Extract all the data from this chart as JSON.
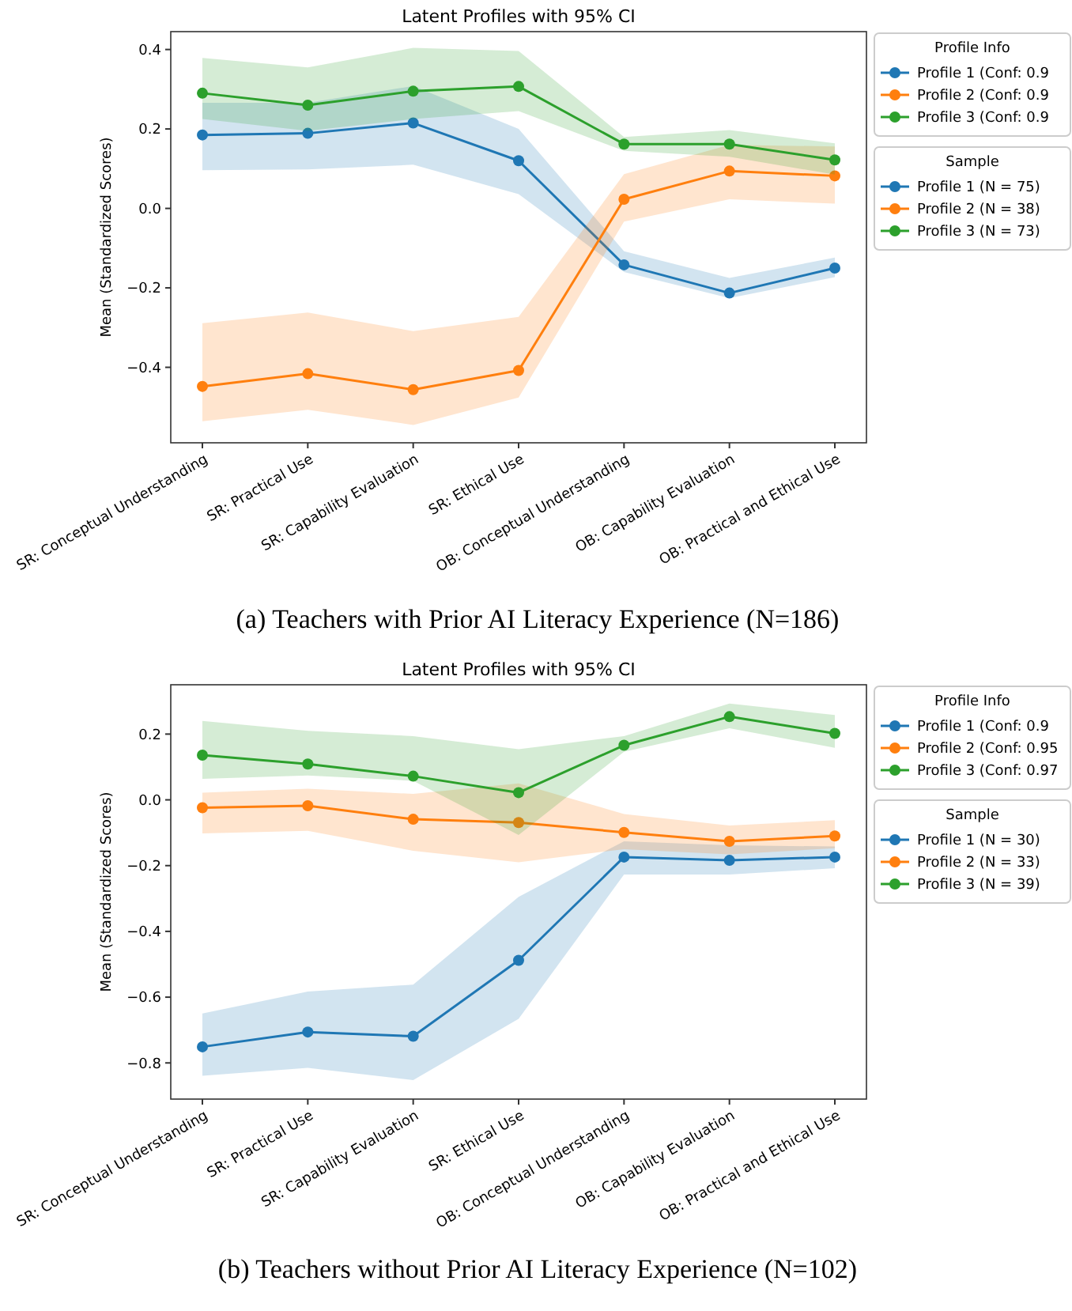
{
  "chart_data": [
    {
      "type": "line",
      "title": "Latent Profiles with 95% CI",
      "ylabel": "Mean (Standardized Scores)",
      "categories": [
        "SR: Conceptual Understanding",
        "SR: Practical Use",
        "SR: Capability Evaluation",
        "SR: Ethical Use",
        "OB: Conceptual Understanding",
        "OB: Capability Evaluation",
        "OB: Practical and Ethical Use"
      ],
      "series": [
        {
          "name": "Profile 1 (Conf: 0.9",
          "color": "#1f77b4",
          "values": [
            0.185,
            0.189,
            0.215,
            0.12,
            -0.142,
            -0.213,
            -0.15
          ],
          "upper": [
            0.266,
            0.266,
            0.308,
            0.2,
            -0.108,
            -0.175,
            -0.124
          ],
          "lower": [
            0.096,
            0.098,
            0.11,
            0.036,
            -0.16,
            -0.226,
            -0.173
          ]
        },
        {
          "name": "Profile 2 (Conf: 0.9",
          "color": "#ff7f0e",
          "values": [
            -0.448,
            -0.416,
            -0.456,
            -0.408,
            0.023,
            0.094,
            0.082
          ],
          "upper": [
            -0.289,
            -0.262,
            -0.309,
            -0.273,
            0.086,
            0.16,
            0.156
          ],
          "lower": [
            -0.536,
            -0.507,
            -0.545,
            -0.476,
            -0.033,
            0.023,
            0.012
          ]
        },
        {
          "name": "Profile 3 (Conf: 0.9",
          "color": "#2ca02c",
          "values": [
            0.29,
            0.26,
            0.295,
            0.307,
            0.162,
            0.162,
            0.122
          ],
          "upper": [
            0.379,
            0.355,
            0.404,
            0.396,
            0.18,
            0.197,
            0.164
          ],
          "lower": [
            0.225,
            0.195,
            0.225,
            0.245,
            0.145,
            0.13,
            0.085
          ]
        }
      ],
      "legend_title": "Profile Info",
      "legend": "right",
      "marker": "circle",
      "grid": false,
      "ylim": [
        -0.59,
        0.445
      ],
      "yticks": [
        {
          "value": -0.4,
          "label": "−0.4"
        },
        {
          "value": -0.2,
          "label": "−0.2"
        },
        {
          "value": 0,
          "label": "0.0"
        },
        {
          "value": 0.2,
          "label": "0.2"
        },
        {
          "value": 0.4,
          "label": "0.4"
        }
      ],
      "annotations": [
        "Sample",
        "Profile 1 (N = 75)",
        "Profile 2 (N = 38)",
        "Profile 3 (N = 73)",
        "(a) Teachers with Prior AI Literacy Experience (N=186)"
      ]
    },
    {
      "type": "line",
      "title": "Latent Profiles with 95% CI",
      "ylabel": "Mean (Standardized Scores)",
      "categories": [
        "SR: Conceptual Understanding",
        "SR: Practical Use",
        "SR: Capability Evaluation",
        "SR: Ethical Use",
        "OB: Conceptual Understanding",
        "OB: Capability Evaluation",
        "OB: Practical and Ethical Use"
      ],
      "series": [
        {
          "name": "Profile 1 (Conf: 0.9",
          "color": "#1f77b4",
          "values": [
            -0.751,
            -0.706,
            -0.719,
            -0.488,
            -0.174,
            -0.184,
            -0.174
          ],
          "upper": [
            -0.65,
            -0.583,
            -0.562,
            -0.295,
            -0.126,
            -0.138,
            -0.142
          ],
          "lower": [
            -0.839,
            -0.815,
            -0.852,
            -0.666,
            -0.227,
            -0.227,
            -0.208
          ]
        },
        {
          "name": "Profile 2 (Conf: 0.95",
          "color": "#ff7f0e",
          "values": [
            -0.024,
            -0.018,
            -0.059,
            -0.069,
            -0.099,
            -0.126,
            -0.11
          ],
          "upper": [
            0.022,
            0.034,
            0.018,
            0.05,
            -0.043,
            -0.078,
            -0.062
          ],
          "lower": [
            -0.102,
            -0.094,
            -0.155,
            -0.19,
            -0.15,
            -0.166,
            -0.147
          ]
        },
        {
          "name": "Profile 3 (Conf: 0.97",
          "color": "#2ca02c",
          "values": [
            0.136,
            0.109,
            0.072,
            0.022,
            0.166,
            0.253,
            0.202
          ],
          "upper": [
            0.24,
            0.21,
            0.194,
            0.154,
            0.194,
            0.293,
            0.258
          ],
          "lower": [
            0.064,
            0.074,
            0.058,
            -0.107,
            0.146,
            0.218,
            0.158
          ]
        }
      ],
      "legend_title": "Profile Info",
      "legend": "right",
      "marker": "circle",
      "grid": false,
      "ylim": [
        -0.91,
        0.35
      ],
      "yticks": [
        {
          "value": -0.8,
          "label": "−0.8"
        },
        {
          "value": -0.6,
          "label": "−0.6"
        },
        {
          "value": -0.4,
          "label": "−0.4"
        },
        {
          "value": -0.2,
          "label": "−0.2"
        },
        {
          "value": 0,
          "label": "0.0"
        },
        {
          "value": 0.2,
          "label": "0.2"
        }
      ],
      "annotations": [
        "Sample",
        "Profile 1 (N = 30)",
        "Profile 2 (N = 33)",
        "Profile 3 (N = 39)",
        "(b) Teachers without Prior AI Literacy Experience (N=102)"
      ]
    }
  ]
}
